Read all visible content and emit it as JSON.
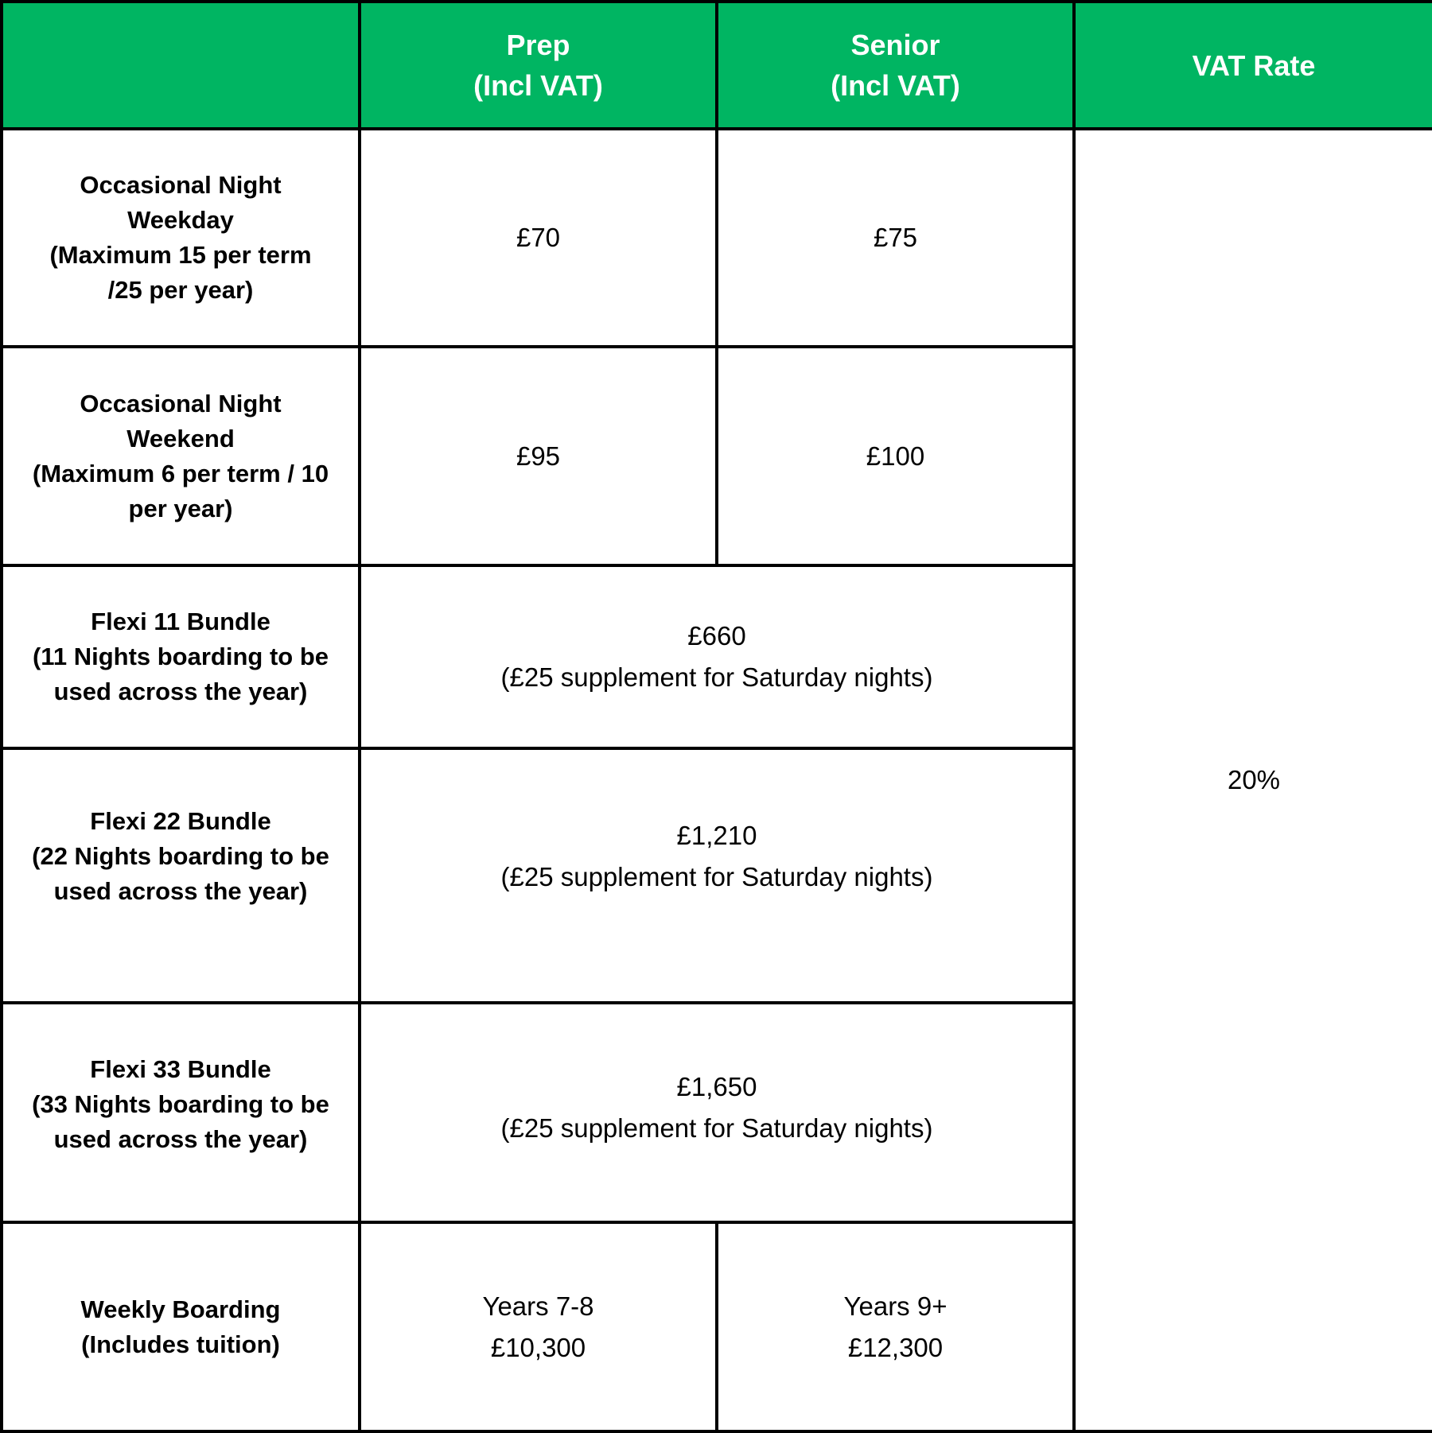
{
  "header": {
    "corner": "",
    "prep": [
      "Prep",
      "(Incl VAT)"
    ],
    "senior": [
      "Senior",
      "(Incl VAT)"
    ],
    "vat": "VAT Rate"
  },
  "rows": [
    {
      "label": [
        "Occasional Night",
        "Weekday",
        "(Maximum 15 per term",
        "/25 per year)"
      ],
      "prep": "£70",
      "senior": "£75"
    },
    {
      "label": [
        "Occasional Night",
        "Weekend",
        "(Maximum 6 per term / 10",
        "per year)"
      ],
      "prep": "£95",
      "senior": "£100"
    },
    {
      "label": [
        "Flexi 11 Bundle",
        "(11 Nights boarding to be",
        "used across the year)"
      ],
      "combined": [
        "£660",
        "(£25 supplement for Saturday nights)"
      ]
    },
    {
      "label": [
        "Flexi 22 Bundle",
        "(22 Nights boarding to be",
        "used across the year)"
      ],
      "combined": [
        "£1,210",
        "(£25 supplement for Saturday nights)"
      ]
    },
    {
      "label": [
        "Flexi 33 Bundle",
        "(33 Nights boarding to be",
        "used across the year)"
      ],
      "combined": [
        "£1,650",
        "(£25 supplement for Saturday nights)"
      ]
    },
    {
      "label": [
        "Weekly Boarding",
        "(Includes tuition)"
      ],
      "prep": [
        "Years 7-8",
        "£10,300"
      ],
      "senior": [
        "Years 9+",
        "£12,300"
      ]
    }
  ],
  "vat_rate": "20%",
  "colors": {
    "header_bg": "#00B562",
    "header_text": "#FFFFFF",
    "border": "#000000"
  }
}
